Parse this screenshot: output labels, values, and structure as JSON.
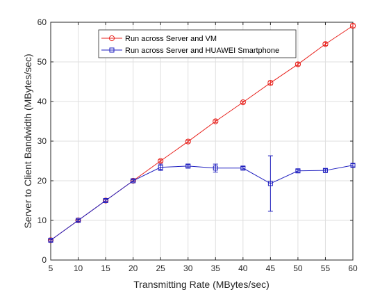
{
  "chart_data": {
    "type": "line",
    "xlabel": "Transmitting Rate (MBytes/sec)",
    "ylabel": "Server to Client Bandwidth (MBytes/sec)",
    "xlim": [
      5,
      60
    ],
    "ylim": [
      0,
      60
    ],
    "xticks": [
      5,
      10,
      15,
      20,
      25,
      30,
      35,
      40,
      45,
      50,
      55,
      60
    ],
    "yticks": [
      0,
      10,
      20,
      30,
      40,
      50,
      60
    ],
    "grid": true,
    "legend_position": "top-left-inside",
    "series": [
      {
        "name": "Run across Server and VM",
        "color": "#e8211c",
        "marker": "circle",
        "x": [
          5,
          10,
          15,
          20,
          25,
          30,
          35,
          40,
          45,
          50,
          55,
          60
        ],
        "y": [
          5,
          10,
          15,
          20,
          25,
          29.9,
          35,
          39.8,
          44.7,
          49.4,
          54.5,
          59.1
        ],
        "err": [
          0.2,
          0.2,
          0.2,
          0.2,
          0.3,
          0.3,
          0.3,
          0.3,
          0.5,
          0.4,
          0.4,
          0.5
        ]
      },
      {
        "name": "Run across Server and HUAWEI Smartphone",
        "color": "#1d1dbf",
        "marker": "square",
        "x": [
          5,
          10,
          15,
          20,
          25,
          30,
          35,
          40,
          45,
          50,
          55,
          60
        ],
        "y": [
          5,
          10,
          15,
          20,
          23.4,
          23.7,
          23.2,
          23.2,
          19.3,
          22.5,
          22.6,
          23.9
        ],
        "err": [
          0.3,
          0.3,
          0.3,
          0.3,
          0.8,
          0.4,
          1.0,
          0.4,
          7.0,
          0.4,
          0.4,
          0.4
        ]
      }
    ]
  }
}
